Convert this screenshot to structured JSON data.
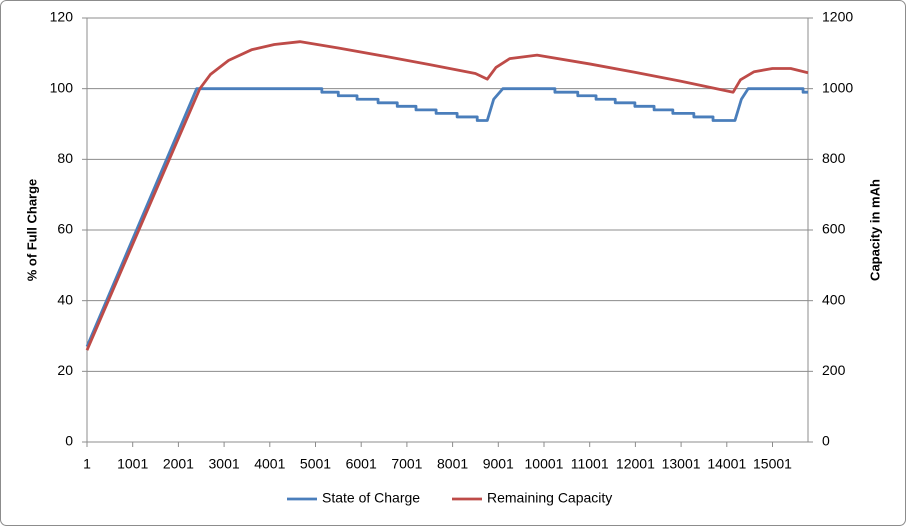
{
  "chart_data": {
    "type": "line",
    "y_label": "% of Full Charge",
    "y2_label": "Capacity in mAh",
    "xlim": [
      1,
      15778
    ],
    "xticks": [
      1,
      1001,
      2001,
      3001,
      4001,
      5001,
      6001,
      7001,
      8001,
      9001,
      10001,
      11001,
      12001,
      13001,
      14001,
      15001
    ],
    "ylim": [
      0,
      120
    ],
    "yticks": [
      0,
      20,
      40,
      60,
      80,
      100,
      120
    ],
    "y2lim": [
      0,
      1200
    ],
    "y2ticks": [
      0,
      200,
      400,
      600,
      800,
      1000,
      1200
    ],
    "grid": true,
    "legend": "bottom",
    "series": [
      {
        "name": "State of Charge",
        "color": "#4a7ebb",
        "x": [
          1,
          2400,
          5140,
          5140,
          5500,
          5500,
          5910,
          5910,
          6370,
          6370,
          6790,
          6790,
          7200,
          7200,
          7640,
          7640,
          8100,
          8100,
          8540,
          8540,
          8760,
          8900,
          9100,
          10240,
          10240,
          10740,
          10740,
          11140,
          11140,
          11560,
          11560,
          11990,
          11990,
          12410,
          12410,
          12820,
          12820,
          13280,
          13280,
          13700,
          13700,
          14180,
          14320,
          14470,
          15670,
          15670,
          15778
        ],
        "values": [
          27,
          100,
          100,
          99,
          99,
          98,
          98,
          97,
          97,
          96,
          96,
          95,
          95,
          94,
          94,
          93,
          93,
          92,
          92,
          91,
          91,
          97,
          100,
          100,
          99,
          99,
          98,
          98,
          97,
          97,
          96,
          96,
          95,
          95,
          94,
          94,
          93,
          93,
          92,
          92,
          91,
          91,
          97,
          100,
          100,
          99,
          99
        ]
      },
      {
        "name": "Remaining Capacity",
        "color": "#be4b48",
        "axis": "y2",
        "x": [
          1,
          2470,
          2700,
          3100,
          3600,
          4100,
          4660,
          5500,
          6500,
          7500,
          8500,
          8760,
          8950,
          9250,
          9850,
          11000,
          12000,
          13000,
          14140,
          14300,
          14600,
          15000,
          15400,
          15778
        ],
        "values": [
          260,
          1000,
          1040,
          1080,
          1110,
          1125,
          1133,
          1115,
          1092,
          1068,
          1043,
          1027,
          1060,
          1085,
          1095,
          1070,
          1046,
          1021,
          990,
          1025,
          1048,
          1057,
          1057,
          1045
        ]
      }
    ]
  }
}
